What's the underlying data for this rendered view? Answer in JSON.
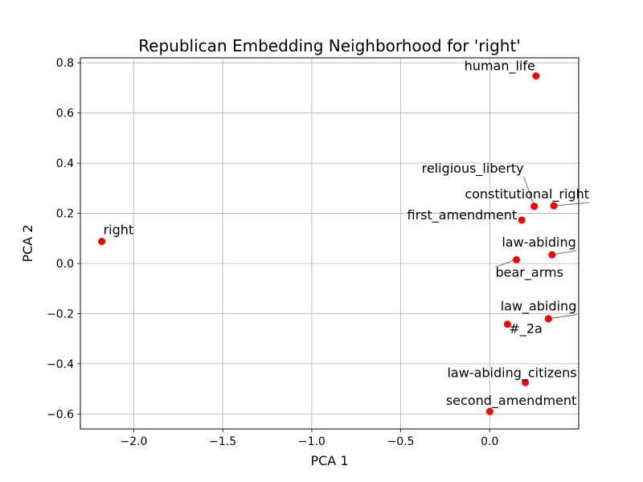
{
  "chart_data": {
    "type": "scatter",
    "title": "Republican Embedding Neighborhood for 'right'",
    "xlabel": "PCA 1",
    "ylabel": "PCA 2",
    "xlim": [
      -2.3,
      0.5
    ],
    "ylim": [
      -0.66,
      0.82
    ],
    "xticks": [
      -2.0,
      -1.5,
      -1.0,
      -0.5,
      0.0
    ],
    "xtick_labels": [
      "−2.0",
      "−1.5",
      "−1.0",
      "−0.5",
      "0.0"
    ],
    "yticks": [
      0.8,
      0.6,
      0.4,
      0.2,
      0.0,
      -0.2,
      -0.4,
      -0.6
    ],
    "ytick_labels": [
      "0.8",
      "0.6",
      "0.4",
      "0.2",
      "0.0",
      "−0.2",
      "−0.4",
      "−0.6"
    ],
    "grid": true,
    "marker_color": "#ff0000",
    "points": [
      {
        "label": "right",
        "x": -2.18,
        "y": 0.088
      },
      {
        "label": "human_life",
        "x": 0.26,
        "y": 0.748
      },
      {
        "label": "religious_liberty",
        "x": 0.25,
        "y": 0.228
      },
      {
        "label": "constitutional_right",
        "x": 0.36,
        "y": 0.23
      },
      {
        "label": "first_amendment",
        "x": 0.18,
        "y": 0.173
      },
      {
        "label": "law-abiding",
        "x": 0.35,
        "y": 0.035
      },
      {
        "label": "bear_arms",
        "x": 0.15,
        "y": 0.015
      },
      {
        "label": "law_abiding",
        "x": 0.33,
        "y": -0.22
      },
      {
        "label": "#_2a",
        "x": 0.1,
        "y": -0.242
      },
      {
        "label": "law-abiding_citizens",
        "x": 0.2,
        "y": -0.475
      },
      {
        "label": "second_amendment",
        "x": 0.0,
        "y": -0.59
      }
    ]
  }
}
